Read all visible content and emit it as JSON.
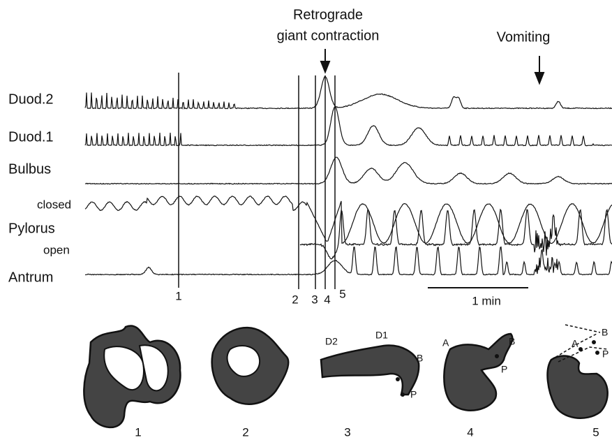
{
  "annotations": {
    "retrograde": [
      "Retrograde",
      "giant contraction"
    ],
    "vomiting": "Vomiting"
  },
  "channels": [
    "Duod.2",
    "Duod.1",
    "Bulbus",
    "closed",
    "Pylorus",
    "open",
    "Antrum"
  ],
  "markers": [
    "1",
    "2",
    "3",
    "4",
    "5"
  ],
  "scale": "1 min",
  "sketches": [
    {
      "number": "1",
      "labels": []
    },
    {
      "number": "2",
      "labels": []
    },
    {
      "number": "3",
      "labels": [
        "D2",
        "D1",
        "B",
        "P"
      ]
    },
    {
      "number": "4",
      "labels": [
        "A",
        "B",
        "P"
      ]
    },
    {
      "number": "5",
      "labels": [
        "A",
        "B",
        "P"
      ]
    }
  ]
}
